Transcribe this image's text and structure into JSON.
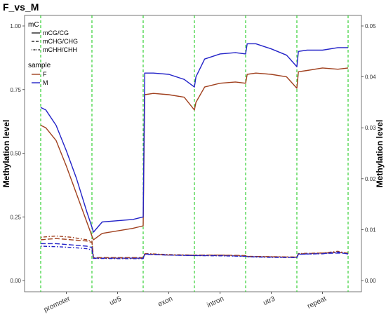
{
  "chart_data": {
    "type": "line",
    "title": "F_vs_M",
    "ylabel": "Methylation level",
    "ylabel_right": "Methylation level",
    "xlabel": "",
    "ylim": [
      0,
      1.0
    ],
    "ylim_right": [
      0,
      0.05
    ],
    "yticks": [
      "0.00",
      "0.25",
      "0.50",
      "0.75",
      "1.00"
    ],
    "yticks_right": [
      "0.00",
      "0.01",
      "0.02",
      "0.03",
      "0.04",
      "0.05"
    ],
    "categories": [
      "promoter",
      "utr5",
      "exon",
      "intron",
      "utr3",
      "repeat"
    ],
    "grid": false,
    "legend": {
      "position": "top-left",
      "context_title": "mC",
      "context_items": [
        {
          "label": "mCG/CG",
          "dash": "solid"
        },
        {
          "label": "mCHG/CHG",
          "dash": "longdash"
        },
        {
          "label": "mCHH/CHH",
          "dash": "dotdash"
        }
      ],
      "sample_title": "sample",
      "sample_items": [
        {
          "label": "F",
          "color": "#a0401e"
        },
        {
          "label": "M",
          "color": "#2323c8"
        }
      ]
    },
    "boundary_color": "#22cc22",
    "x_range": [
      0,
      6
    ],
    "series": [
      {
        "name": "F",
        "context": "mCG/CG",
        "color": "#a0401e",
        "dash": "solid",
        "x": [
          0.0,
          0.1,
          0.3,
          0.5,
          0.7,
          0.9,
          1.0,
          1.03,
          1.2,
          1.5,
          1.8,
          2.0,
          2.03,
          2.2,
          2.5,
          2.8,
          3.0,
          3.03,
          3.2,
          3.5,
          3.8,
          4.0,
          4.03,
          4.2,
          4.5,
          4.8,
          5.0,
          5.03,
          5.2,
          5.5,
          5.8,
          6.0
        ],
        "y": [
          0.61,
          0.6,
          0.55,
          0.45,
          0.34,
          0.23,
          0.175,
          0.16,
          0.185,
          0.195,
          0.205,
          0.215,
          0.73,
          0.735,
          0.73,
          0.72,
          0.67,
          0.7,
          0.76,
          0.775,
          0.78,
          0.775,
          0.81,
          0.815,
          0.81,
          0.8,
          0.755,
          0.82,
          0.825,
          0.835,
          0.83,
          0.835
        ]
      },
      {
        "name": "M",
        "context": "mCG/CG",
        "color": "#2323c8",
        "dash": "solid",
        "x": [
          0.0,
          0.1,
          0.3,
          0.5,
          0.7,
          0.9,
          1.0,
          1.03,
          1.2,
          1.5,
          1.8,
          2.0,
          2.03,
          2.2,
          2.5,
          2.8,
          3.0,
          3.03,
          3.2,
          3.5,
          3.8,
          4.0,
          4.03,
          4.2,
          4.5,
          4.8,
          5.0,
          5.03,
          5.2,
          5.5,
          5.8,
          6.0
        ],
        "y": [
          0.68,
          0.67,
          0.61,
          0.51,
          0.4,
          0.27,
          0.21,
          0.19,
          0.23,
          0.235,
          0.24,
          0.25,
          0.815,
          0.815,
          0.81,
          0.79,
          0.76,
          0.8,
          0.87,
          0.89,
          0.895,
          0.89,
          0.93,
          0.93,
          0.91,
          0.885,
          0.84,
          0.9,
          0.905,
          0.905,
          0.915,
          0.915
        ]
      },
      {
        "name": "F",
        "context": "mCHG/CHG",
        "color": "#a0401e",
        "dash": "longdash",
        "x": [
          0.0,
          0.3,
          0.6,
          0.9,
          1.0,
          1.03,
          1.5,
          2.0,
          2.03,
          2.5,
          3.0,
          3.03,
          3.5,
          4.0,
          4.03,
          4.5,
          5.0,
          5.03,
          5.5,
          5.8,
          6.0
        ],
        "y": [
          0.16,
          0.165,
          0.16,
          0.155,
          0.15,
          0.09,
          0.09,
          0.09,
          0.105,
          0.1,
          0.1,
          0.1,
          0.1,
          0.098,
          0.095,
          0.093,
          0.092,
          0.105,
          0.108,
          0.11,
          0.108
        ]
      },
      {
        "name": "M",
        "context": "mCHG/CHG",
        "color": "#2323c8",
        "dash": "longdash",
        "x": [
          0.0,
          0.3,
          0.6,
          0.9,
          1.0,
          1.03,
          1.5,
          2.0,
          2.03,
          2.5,
          3.0,
          3.03,
          3.5,
          4.0,
          4.03,
          4.5,
          5.0,
          5.03,
          5.5,
          5.8,
          6.0
        ],
        "y": [
          0.145,
          0.145,
          0.14,
          0.135,
          0.13,
          0.088,
          0.088,
          0.088,
          0.103,
          0.1,
          0.098,
          0.098,
          0.098,
          0.096,
          0.094,
          0.092,
          0.091,
          0.103,
          0.106,
          0.108,
          0.106
        ]
      },
      {
        "name": "F",
        "context": "mCHH/CHH",
        "color": "#a0401e",
        "dash": "dotdash",
        "x": [
          0.0,
          0.3,
          0.6,
          0.9,
          1.0,
          1.03,
          1.5,
          2.0,
          2.03,
          2.5,
          3.0,
          3.03,
          3.5,
          4.0,
          4.03,
          4.5,
          5.0,
          5.03,
          5.5,
          5.8,
          6.0
        ],
        "y": [
          0.17,
          0.175,
          0.17,
          0.16,
          0.155,
          0.088,
          0.087,
          0.087,
          0.106,
          0.102,
          0.1,
          0.1,
          0.1,
          0.097,
          0.095,
          0.094,
          0.092,
          0.106,
          0.108,
          0.115,
          0.107
        ]
      },
      {
        "name": "M",
        "context": "mCHH/CHH",
        "color": "#2323c8",
        "dash": "dotdash",
        "x": [
          0.0,
          0.3,
          0.6,
          0.9,
          1.0,
          1.03,
          1.5,
          2.0,
          2.03,
          2.5,
          3.0,
          3.03,
          3.5,
          4.0,
          4.03,
          4.5,
          5.0,
          5.03,
          5.5,
          5.8,
          6.0
        ],
        "y": [
          0.135,
          0.133,
          0.13,
          0.125,
          0.12,
          0.087,
          0.086,
          0.086,
          0.104,
          0.1,
          0.098,
          0.098,
          0.097,
          0.095,
          0.093,
          0.091,
          0.09,
          0.104,
          0.105,
          0.112,
          0.104
        ]
      }
    ]
  }
}
